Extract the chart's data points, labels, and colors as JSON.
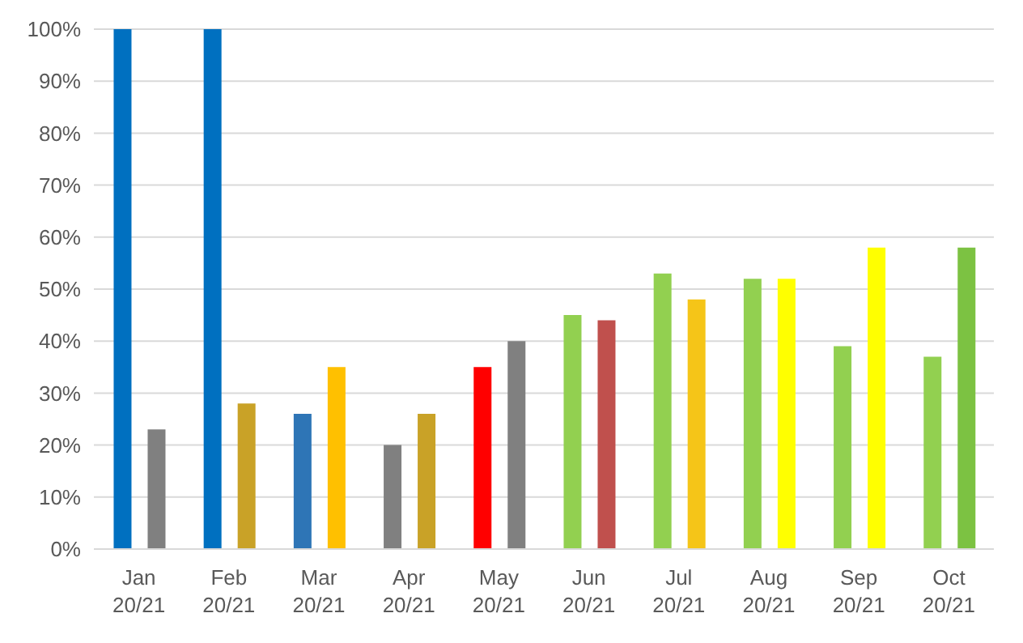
{
  "chart_data": {
    "type": "bar",
    "categories": [
      "Jan 20/21",
      "Feb 20/21",
      "Mar 20/21",
      "Apr 20/21",
      "May 20/21",
      "Jun 20/21",
      "Jul 20/21",
      "Aug 20/21",
      "Sep 20/21",
      "Oct 20/21"
    ],
    "series": [
      {
        "values": [
          100,
          100,
          26,
          20,
          35,
          45,
          53,
          52,
          39,
          37
        ],
        "colors": [
          "#0070c0",
          "#0070c0",
          "#2e75b6",
          "#808080",
          "#ff0000",
          "#92d050",
          "#92d050",
          "#92d050",
          "#92d050",
          "#92d050"
        ]
      },
      {
        "values": [
          23,
          28,
          35,
          26,
          40,
          44,
          48,
          52,
          58,
          58
        ],
        "colors": [
          "#808080",
          "#c9a227",
          "#ffc000",
          "#c9a227",
          "#808080",
          "#c0504d",
          "#f5c518",
          "#ffff00",
          "#ffff00",
          "#7cc242"
        ]
      }
    ],
    "ylim": [
      0,
      100
    ],
    "yticks": [
      {
        "value": 0,
        "label": "0%"
      },
      {
        "value": 10,
        "label": "10%"
      },
      {
        "value": 20,
        "label": "20%"
      },
      {
        "value": 30,
        "label": "30%"
      },
      {
        "value": 40,
        "label": "40%"
      },
      {
        "value": 50,
        "label": "50%"
      },
      {
        "value": 60,
        "label": "60%"
      },
      {
        "value": 70,
        "label": "70%"
      },
      {
        "value": 80,
        "label": "80%"
      },
      {
        "value": 90,
        "label": "90%"
      },
      {
        "value": 100,
        "label": "100%"
      }
    ],
    "grid": "y",
    "legend": false
  }
}
